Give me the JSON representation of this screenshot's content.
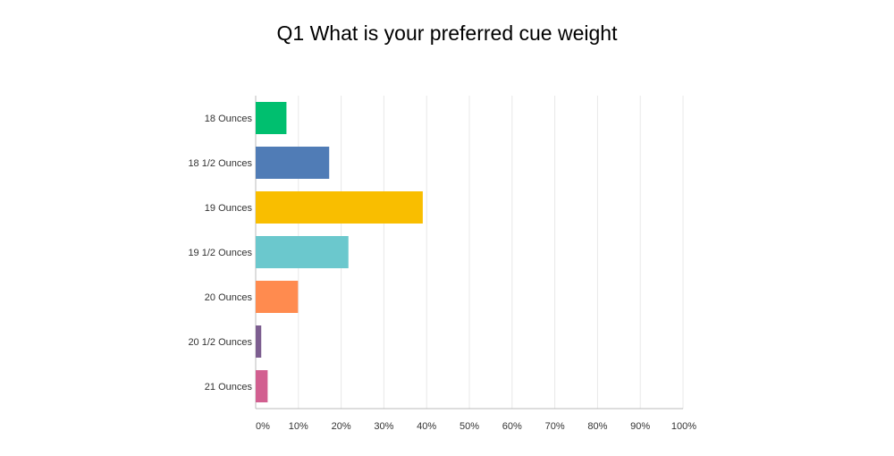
{
  "chart_data": {
    "type": "bar",
    "orientation": "horizontal",
    "title": "Q1 What is your preferred cue weight",
    "categories": [
      "18 Ounces",
      "18 1/2 Ounces",
      "19 Ounces",
      "19 1/2 Ounces",
      "20 Ounces",
      "20 1/2 Ounces",
      "21 Ounces"
    ],
    "values": [
      7.2,
      17.2,
      39.1,
      21.7,
      9.9,
      1.3,
      2.8
    ],
    "colors": [
      "#00bf6f",
      "#507cb6",
      "#f9be00",
      "#6bc8cd",
      "#ff8b4f",
      "#7d5e90",
      "#d25f90"
    ],
    "xlim": [
      0,
      100
    ],
    "xticks": [
      "0%",
      "10%",
      "20%",
      "30%",
      "40%",
      "50%",
      "60%",
      "70%",
      "80%",
      "90%",
      "100%"
    ],
    "grid": true,
    "legend": "none"
  }
}
